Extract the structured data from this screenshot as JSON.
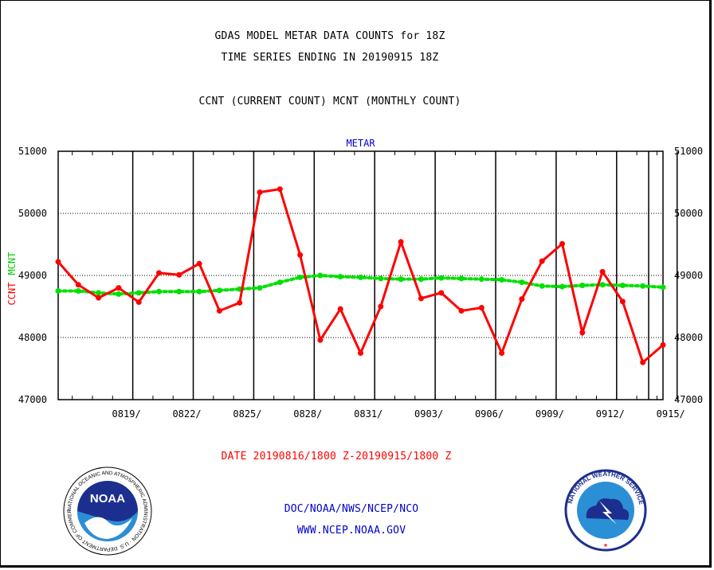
{
  "header": {
    "line1": "GDAS MODEL METAR DATA COUNTS for 18Z",
    "line2": "TIME SERIES ENDING IN 20190915 18Z",
    "line3": "CCNT (CURRENT COUNT) MCNT (MONTHLY COUNT)"
  },
  "footer": {
    "date_range": "DATE 20190816/1800 Z-20190915/1800 Z",
    "org": "DOC/NOAA/NWS/NCEP/NCO",
    "url": "WWW.NCEP.NOAA.GOV"
  },
  "logos": {
    "left": "noaa-logo",
    "left_text": "NOAA",
    "left_ring_text": "NATIONAL OCEANIC AND ATMOSPHERIC ADMINISTRATION · U.S. DEPARTMENT OF COMMERCE",
    "right": "national-weather-service-logo",
    "right_ring_text": "NATIONAL WEATHER SERVICE"
  },
  "colors": {
    "ccnt": "#ff0000",
    "mcnt": "#00e000",
    "title": "#0000cc",
    "grid": "#000000"
  },
  "chart_data": {
    "type": "line",
    "title": "METAR",
    "ylabel_ccnt": "CCNT",
    "ylabel_mcnt": "MCNT",
    "ylim": [
      47000,
      51000
    ],
    "yticks": [
      "47000",
      "48000",
      "49000",
      "50000",
      "51000"
    ],
    "xticks": [
      "0819/",
      "0822/",
      "0825/",
      "0828/",
      "0831/",
      "0903/",
      "0906/",
      "0909/",
      "0912/",
      "0915/"
    ],
    "x": [
      "0816",
      "0817",
      "0818",
      "0819",
      "0820",
      "0821",
      "0822",
      "0823",
      "0824",
      "0825",
      "0826",
      "0827",
      "0828",
      "0829",
      "0830",
      "0831",
      "0901",
      "0902",
      "0903",
      "0904",
      "0905",
      "0906",
      "0907",
      "0908",
      "0909",
      "0910",
      "0911",
      "0912",
      "0913",
      "0914",
      "0915"
    ],
    "series": [
      {
        "name": "CCNT",
        "values": [
          49220,
          48850,
          48640,
          48800,
          48570,
          49040,
          49010,
          49190,
          48430,
          48560,
          50340,
          50390,
          49330,
          47960,
          48460,
          47750,
          48500,
          49540,
          48630,
          48720,
          48430,
          48480,
          47750,
          48620,
          49230,
          49510,
          48080,
          49060,
          48580,
          47600,
          47880
        ]
      },
      {
        "name": "MCNT",
        "values": [
          48750,
          48750,
          48720,
          48700,
          48720,
          48740,
          48740,
          48740,
          48760,
          48780,
          48800,
          48890,
          48970,
          49000,
          48980,
          48970,
          48950,
          48940,
          48940,
          48960,
          48950,
          48940,
          48930,
          48890,
          48830,
          48820,
          48840,
          48850,
          48840,
          48830,
          48810
        ]
      }
    ],
    "grid": true
  }
}
